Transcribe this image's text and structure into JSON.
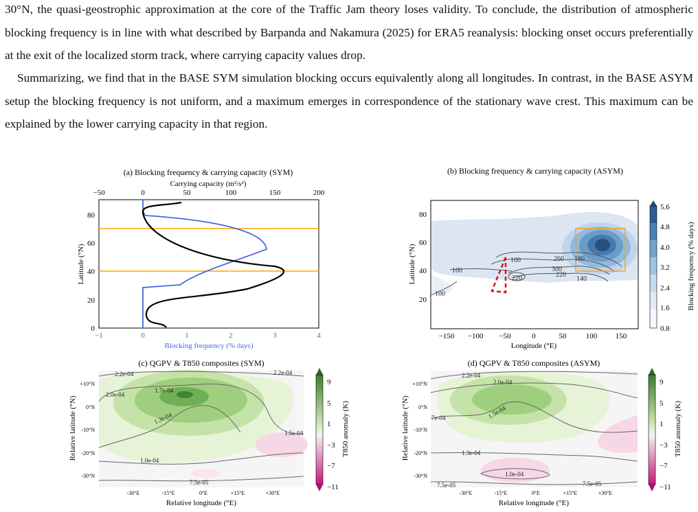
{
  "text": {
    "p1": "30°N, the quasi-geostrophic approximation at the core of the Traffic Jam theory loses validity. To conclude, the distribution of atmospheric blocking frequency is in line with what described by Barpanda and Nakamura (2025) for ERA5 reanalysis: blocking onset occurs preferentially at the exit of the localized storm track, where carrying capacity values drop.",
    "p2": "Summarizing, we find that in the BASE SYM simulation blocking occurs equivalently along all longitudes. In contrast, in the BASE ASYM setup the blocking frequency is not uniform, and a maximum emerges in correspondence of the stationary wave crest. This maximum can be explained by the lower carrying capacity in that region."
  },
  "panel_a": {
    "title": "(a) Blocking frequency & carrying capacity (SYM)",
    "top_axis_label": "Carrying capacity (m²/s²)",
    "top_ticks": [
      "−50",
      "0",
      "50",
      "100",
      "150",
      "200"
    ],
    "bottom_axis_label": "Blocking frequency (% days)",
    "bottom_ticks": [
      "−1",
      "0",
      "1",
      "2",
      "3",
      "4"
    ],
    "ylabel": "Latitude (°N)",
    "y_ticks": [
      "0",
      "20",
      "40",
      "60",
      "80"
    ]
  },
  "panel_b": {
    "title": "(b) Blocking frequency & carrying capacity (ASYM)",
    "xlabel": "Longitude (°E)",
    "ylabel": "Latitude (°N)",
    "x_ticks": [
      "−150",
      "−100",
      "−50",
      "0",
      "50",
      "100",
      "150"
    ],
    "y_ticks": [
      "20",
      "40",
      "60",
      "80"
    ],
    "contour_labels": [
      "100",
      "100",
      "100",
      "100",
      "180",
      "260",
      "300",
      "220",
      "140",
      "220"
    ],
    "colorbar_label": "Blocking frequency (% days)",
    "colorbar_ticks": [
      "0.8",
      "1.6",
      "2.4",
      "3.2",
      "4.0",
      "4.8",
      "5.6"
    ]
  },
  "panel_c": {
    "title": "(c) QGPV & T850 composites (SYM)",
    "xlabel": "Relative longitude (°E)",
    "ylabel": "Relative latitude (°N)",
    "x_ticks": [
      "-30°E",
      "-15°E",
      "0°E",
      "+15°E",
      "+30°E"
    ],
    "y_ticks": [
      "+10°N",
      "0°N",
      "-10°N",
      "-20°N",
      "-30°N"
    ],
    "contour_labels": [
      "2.2e-04",
      "2.2e-04",
      "2.0e-04",
      "1.7e-04",
      "1.3e-04",
      "1.5e-04",
      "1.0e-04",
      "7.5e-05"
    ],
    "colorbar_label": "T850 anomaly (K)",
    "colorbar_ticks": [
      "9",
      "5",
      "1",
      "−3",
      "−7",
      "−11"
    ]
  },
  "panel_d": {
    "title": "(d) QGPV & T850 composites (ASYM)",
    "xlabel": "Relative longitude (°E)",
    "ylabel": "Relative latitude (°N)",
    "x_ticks": [
      "-30°E",
      "-15°E",
      "0°E",
      "+15°E",
      "+30°E"
    ],
    "y_ticks": [
      "+10°N",
      "0°N",
      "-10°N",
      "-20°N",
      "-30°N"
    ],
    "contour_labels": [
      "2.2e-04",
      "2.0e-04",
      "1.5e-04",
      "7e-04",
      "1.3e-04",
      "1.0e-04",
      "7.5e-05",
      "7.5e-05"
    ],
    "colorbar_label": "T850 anomaly (K)",
    "colorbar_ticks": [
      "9",
      "5",
      "1",
      "−3",
      "−7",
      "−11"
    ]
  },
  "colors": {
    "blocking_line": "#4169e1",
    "capacity_line": "#000000",
    "hline": "#ffa500",
    "box_orange": "#f0a030",
    "box_red": "#e01010"
  }
}
